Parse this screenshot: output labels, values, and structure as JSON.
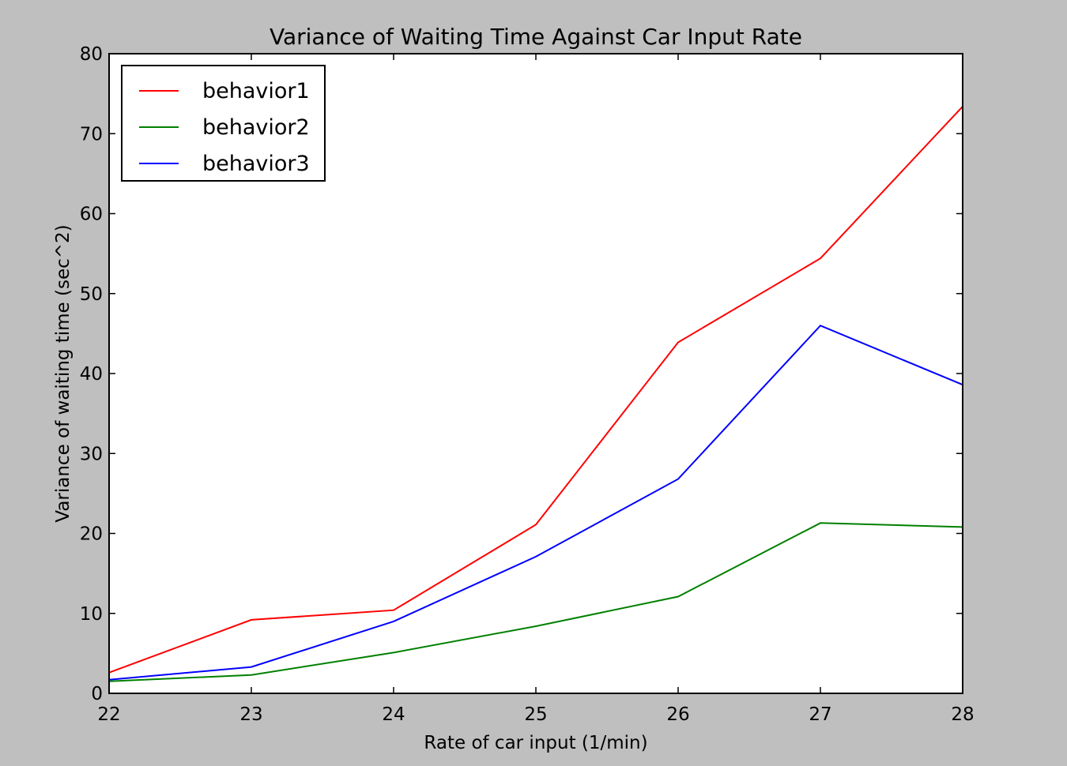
{
  "chart_data": {
    "type": "line",
    "title": "Variance of Waiting Time Against Car Input Rate",
    "xlabel": "Rate of car input (1/min)",
    "ylabel": "Variance of waiting time (sec^2)",
    "xlim": [
      22,
      28
    ],
    "ylim": [
      0,
      80
    ],
    "x_ticks": [
      "22",
      "23",
      "24",
      "25",
      "26",
      "27",
      "28"
    ],
    "y_ticks": [
      "0",
      "10",
      "20",
      "30",
      "40",
      "50",
      "60",
      "70",
      "80"
    ],
    "x": [
      22,
      23,
      24,
      25,
      26,
      27,
      28
    ],
    "series": [
      {
        "name": "behavior1",
        "color": "#ff0000",
        "values": [
          2.6,
          9.2,
          10.4,
          21.1,
          43.9,
          54.4,
          73.4
        ]
      },
      {
        "name": "behavior2",
        "color": "#008000",
        "values": [
          1.5,
          2.3,
          5.1,
          8.4,
          12.1,
          21.3,
          20.8
        ]
      },
      {
        "name": "behavior3",
        "color": "#0000ff",
        "values": [
          1.7,
          3.3,
          9.0,
          17.1,
          26.8,
          46.0,
          38.6
        ]
      }
    ],
    "grid": false,
    "legend_position": "top-left"
  }
}
